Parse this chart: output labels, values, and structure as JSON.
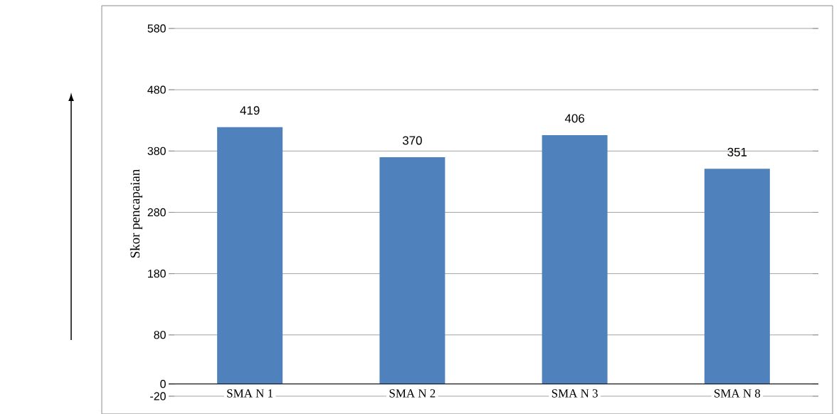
{
  "chart_data": {
    "type": "bar",
    "ylabel": "Skor pencapaian",
    "categories": [
      "SMA N 1",
      "SMA N 2",
      "SMA N 3",
      "SMA N 8"
    ],
    "values": [
      419,
      370,
      406,
      351
    ],
    "color": "#4f81bd",
    "ylim": [
      -20,
      580
    ],
    "yticks": [
      -20,
      0,
      80,
      180,
      280,
      380,
      480,
      580
    ],
    "grid": "y",
    "data_labels": true
  }
}
